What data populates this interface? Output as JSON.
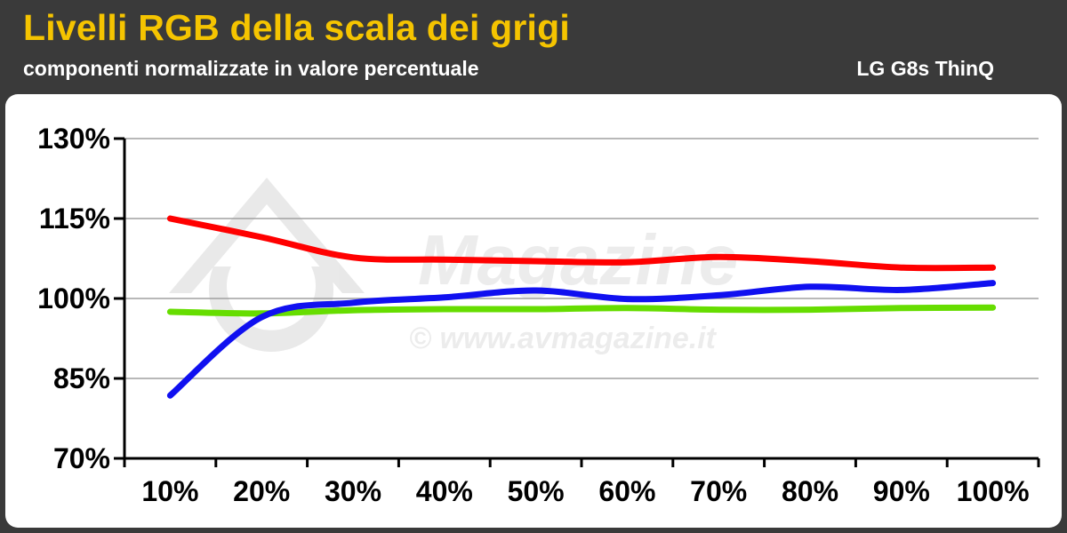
{
  "header": {
    "title": "Livelli RGB della scala dei grigi",
    "subtitle": "componenti normalizzate in valore percentuale",
    "device": "LG G8s ThinQ"
  },
  "watermark": {
    "brand": "Magazine",
    "url": "© www.avmagazine.it"
  },
  "colors": {
    "background": "#3a3a3a",
    "title": "#f5c400",
    "red": "#ff0000",
    "green": "#66dd00",
    "blue": "#1010f0"
  },
  "chart_data": {
    "type": "line",
    "title": "Livelli RGB della scala dei grigi",
    "subtitle": "componenti normalizzate in valore percentuale",
    "categories": [
      "10%",
      "20%",
      "30%",
      "40%",
      "50%",
      "60%",
      "70%",
      "80%",
      "90%",
      "100%"
    ],
    "y_ticks": [
      "70%",
      "85%",
      "100%",
      "115%",
      "130%"
    ],
    "ylim": [
      70,
      130
    ],
    "grid": true,
    "legend": "none",
    "series": [
      {
        "color": "#ff0000",
        "values": [
          115,
          111.5,
          107.7,
          107.3,
          107.0,
          106.8,
          107.8,
          107.0,
          105.8,
          105.8
        ]
      },
      {
        "color": "#66dd00",
        "values": [
          97.5,
          97.2,
          97.8,
          98.0,
          98.0,
          98.2,
          97.9,
          97.9,
          98.2,
          98.3
        ]
      },
      {
        "color": "#1010f0",
        "values": [
          81.8,
          96.5,
          99.2,
          100.2,
          101.5,
          99.9,
          100.6,
          102.2,
          101.6,
          102.9
        ]
      }
    ]
  }
}
